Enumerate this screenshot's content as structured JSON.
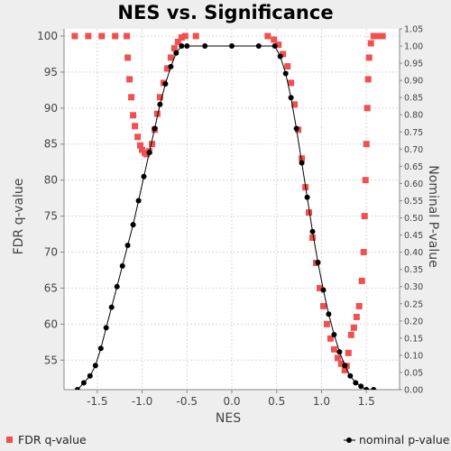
{
  "chart_data": {
    "type": "scatter",
    "title": "NES vs. Significance",
    "xlabel": "NES",
    "ylabel_left": "FDR q-value",
    "ylabel_right": "Nominal P-value",
    "xlim": [
      -1.87,
      1.87
    ],
    "ylim_left": [
      50.9,
      101.0
    ],
    "ylim_right": [
      0.0,
      1.05
    ],
    "x_ticks": [
      -1.5,
      -1.0,
      -0.5,
      0.0,
      0.5,
      1.0,
      1.5
    ],
    "y_ticks_left": [
      55,
      60,
      65,
      70,
      75,
      80,
      85,
      90,
      95,
      100
    ],
    "y_ticks_right": [
      0.0,
      0.05,
      0.1,
      0.15,
      0.2,
      0.25,
      0.3,
      0.35,
      0.4,
      0.45,
      0.5,
      0.55,
      0.6,
      0.65,
      0.7,
      0.75,
      0.8,
      0.85,
      0.9,
      0.95,
      1.0,
      1.05
    ],
    "x_tick_labels": [
      "-1.5",
      "-1.0",
      "-0.5",
      "0.0",
      "0.5",
      "1.0",
      "1.5"
    ],
    "y_tick_labels_left": [
      "55",
      "60",
      "65",
      "70",
      "75",
      "80",
      "85",
      "90",
      "95",
      "100"
    ],
    "y_tick_labels_right": [
      "0.00",
      "0.05",
      "0.10",
      "0.15",
      "0.20",
      "0.25",
      "0.30",
      "0.35",
      "0.40",
      "0.45",
      "0.50",
      "0.55",
      "0.60",
      "0.65",
      "0.70",
      "0.75",
      "0.80",
      "0.85",
      "0.90",
      "0.95",
      "1.00",
      "1.05"
    ],
    "grid": true,
    "legend_position": "bottom",
    "series": [
      {
        "name": "FDR q-value",
        "axis": "left",
        "marker": "square",
        "color": "#f05050",
        "points": [
          [
            -1.75,
            100
          ],
          [
            -1.6,
            100
          ],
          [
            -1.45,
            100
          ],
          [
            -1.3,
            100
          ],
          [
            -1.17,
            100
          ],
          [
            -1.16,
            97
          ],
          [
            -1.14,
            94
          ],
          [
            -1.12,
            91.5
          ],
          [
            -1.1,
            89
          ],
          [
            -1.08,
            87.5
          ],
          [
            -1.05,
            86
          ],
          [
            -1.02,
            84.8
          ],
          [
            -1.0,
            84.2
          ],
          [
            -0.97,
            83.8
          ],
          [
            -0.95,
            83.6
          ],
          [
            -0.92,
            84.0
          ],
          [
            -0.89,
            85.0
          ],
          [
            -0.86,
            87.0
          ],
          [
            -0.83,
            89.2
          ],
          [
            -0.8,
            91.5
          ],
          [
            -0.76,
            93.5
          ],
          [
            -0.72,
            95.5
          ],
          [
            -0.68,
            97.0
          ],
          [
            -0.64,
            98.3
          ],
          [
            -0.6,
            99.2
          ],
          [
            -0.56,
            99.8
          ],
          [
            -0.52,
            100
          ],
          [
            -0.4,
            100
          ],
          [
            0.4,
            100
          ],
          [
            0.47,
            99.5
          ],
          [
            0.52,
            98.8
          ],
          [
            0.57,
            97.5
          ],
          [
            0.62,
            95.8
          ],
          [
            0.66,
            93.5
          ],
          [
            0.7,
            90.5
          ],
          [
            0.74,
            87.0
          ],
          [
            0.78,
            83.0
          ],
          [
            0.82,
            79.0
          ],
          [
            0.86,
            75.5
          ],
          [
            0.9,
            72.0
          ],
          [
            0.94,
            68.5
          ],
          [
            0.98,
            65.0
          ],
          [
            1.02,
            62.5
          ],
          [
            1.06,
            60.0
          ],
          [
            1.1,
            58.0
          ],
          [
            1.14,
            56.5
          ],
          [
            1.18,
            55.3
          ],
          [
            1.22,
            54.5
          ],
          [
            1.26,
            53.6
          ],
          [
            1.28,
            54.2
          ],
          [
            1.3,
            56.0
          ],
          [
            1.33,
            58.5
          ],
          [
            1.36,
            59.5
          ],
          [
            1.39,
            61.0
          ],
          [
            1.42,
            62.5
          ],
          [
            1.45,
            66.0
          ],
          [
            1.47,
            70.0
          ],
          [
            1.48,
            75.0
          ],
          [
            1.49,
            80.0
          ],
          [
            1.5,
            85.0
          ],
          [
            1.51,
            90.0
          ],
          [
            1.52,
            94.0
          ],
          [
            1.53,
            97.0
          ],
          [
            1.55,
            99.0
          ],
          [
            1.58,
            100
          ],
          [
            1.63,
            100
          ],
          [
            1.68,
            100
          ]
        ]
      },
      {
        "name": "nominal p-value",
        "axis": "right",
        "marker": "circle-line",
        "color": "#000000",
        "points": [
          [
            -1.72,
            0.0
          ],
          [
            -1.65,
            0.02
          ],
          [
            -1.58,
            0.04
          ],
          [
            -1.52,
            0.07
          ],
          [
            -1.46,
            0.12
          ],
          [
            -1.4,
            0.18
          ],
          [
            -1.34,
            0.24
          ],
          [
            -1.28,
            0.3
          ],
          [
            -1.22,
            0.36
          ],
          [
            -1.16,
            0.42
          ],
          [
            -1.1,
            0.48
          ],
          [
            -1.04,
            0.55
          ],
          [
            -0.98,
            0.62
          ],
          [
            -0.92,
            0.69
          ],
          [
            -0.86,
            0.76
          ],
          [
            -0.8,
            0.83
          ],
          [
            -0.74,
            0.89
          ],
          [
            -0.68,
            0.94
          ],
          [
            -0.62,
            0.98
          ],
          [
            -0.56,
            1.0
          ],
          [
            -0.5,
            1.0
          ],
          [
            -0.3,
            1.0
          ],
          [
            0.0,
            1.0
          ],
          [
            0.3,
            1.0
          ],
          [
            0.48,
            1.0
          ],
          [
            0.54,
            0.97
          ],
          [
            0.6,
            0.92
          ],
          [
            0.66,
            0.85
          ],
          [
            0.72,
            0.76
          ],
          [
            0.78,
            0.66
          ],
          [
            0.84,
            0.56
          ],
          [
            0.9,
            0.46
          ],
          [
            0.96,
            0.37
          ],
          [
            1.02,
            0.29
          ],
          [
            1.08,
            0.22
          ],
          [
            1.14,
            0.16
          ],
          [
            1.2,
            0.11
          ],
          [
            1.26,
            0.07
          ],
          [
            1.32,
            0.04
          ],
          [
            1.38,
            0.02
          ],
          [
            1.44,
            0.01
          ],
          [
            1.5,
            0.0
          ],
          [
            1.58,
            0.0
          ]
        ]
      }
    ]
  }
}
